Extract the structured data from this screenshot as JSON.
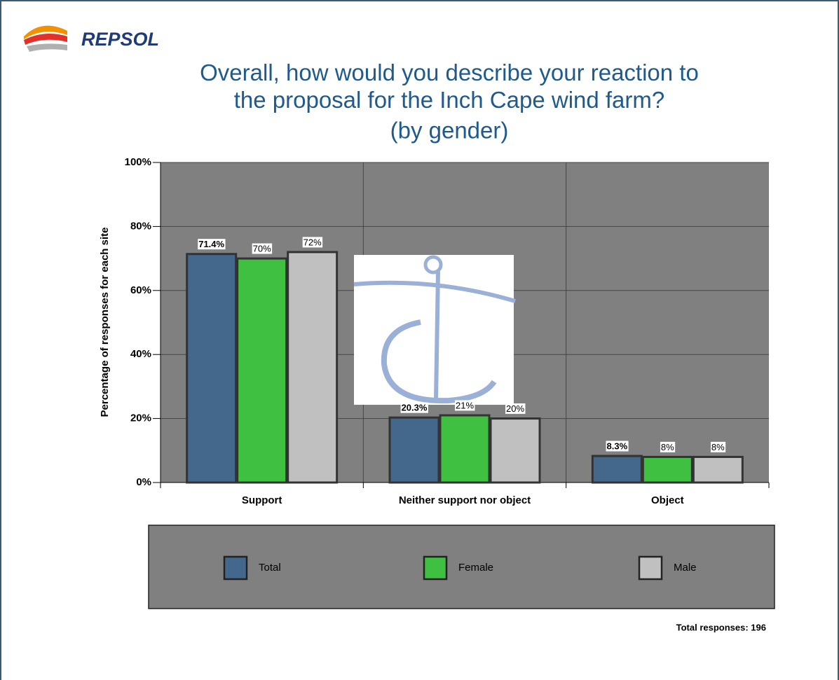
{
  "chart_data": {
    "type": "bar",
    "logo": "REPSOL",
    "title": "Overall, how would you describe your reaction to the proposal for the Inch Cape wind farm?",
    "subtitle": "(by gender)",
    "y_label": "Percentage of responses for each site",
    "categories": [
      "Support",
      "Neither support nor object",
      "Object"
    ],
    "series": [
      {
        "name": "Total",
        "color": "#44678c",
        "values": [
          71.4,
          20.3,
          8.3
        ],
        "value_labels": [
          "71.4%",
          "20.3%",
          "8.3%"
        ]
      },
      {
        "name": "Female",
        "color": "#40c040",
        "values": [
          70,
          21,
          8
        ],
        "value_labels": [
          "70%",
          "21%",
          "8%"
        ]
      },
      {
        "name": "Male",
        "color": "#c0c0c0",
        "values": [
          72,
          20,
          8
        ],
        "value_labels": [
          "72%",
          "20%",
          "8%"
        ]
      }
    ],
    "ylim": [
      0,
      100
    ],
    "yticks": [
      {
        "value": 0,
        "label": "0%"
      },
      {
        "value": 20,
        "label": "20%"
      },
      {
        "value": 40,
        "label": "40%"
      },
      {
        "value": 60,
        "label": "60%"
      },
      {
        "value": 80,
        "label": "80%"
      },
      {
        "value": 100,
        "label": "100%"
      }
    ],
    "grid": true,
    "legend_position": "bottom",
    "footnote": "Total responses: 196"
  }
}
